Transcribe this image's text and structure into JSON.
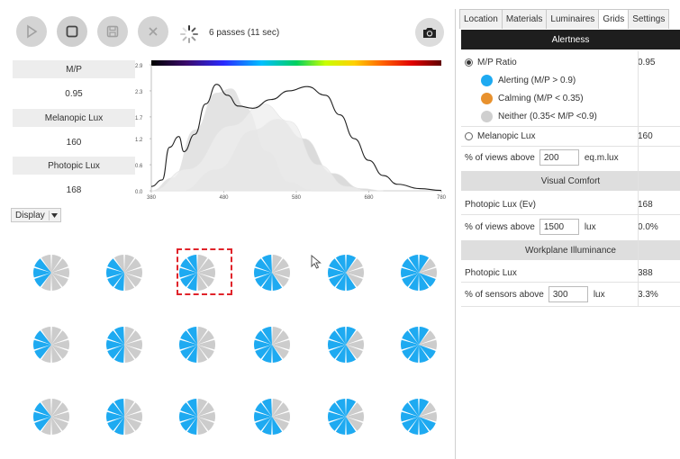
{
  "toolbar": {
    "buttons": [
      {
        "name": "play-button",
        "icon": "play-icon",
        "enabled": false
      },
      {
        "name": "stop-button",
        "icon": "stop-icon",
        "enabled": true
      },
      {
        "name": "save-button",
        "icon": "save-icon",
        "enabled": false
      },
      {
        "name": "cancel-button",
        "icon": "close-icon",
        "enabled": false
      }
    ],
    "status": "6 passes (11 sec)",
    "camera_icon": "camera-icon"
  },
  "metrics": [
    {
      "label": "M/P",
      "value": "0.95"
    },
    {
      "label": "Melanopic Lux",
      "value": "160"
    },
    {
      "label": "Photopic Lux",
      "value": "168"
    }
  ],
  "chart_data": {
    "type": "line",
    "xlim": [
      380,
      780
    ],
    "ylim": [
      0,
      2.9
    ],
    "x_ticks": [
      "380",
      "480",
      "580",
      "680",
      "780"
    ],
    "y_ticks": [
      "2.9",
      "2.3",
      "1.7",
      "1.2",
      "0.6",
      "0.0"
    ],
    "series": [
      {
        "values": [
          [
            380,
            0.1
          ],
          [
            395,
            0.25
          ],
          [
            405,
            1.0
          ],
          [
            418,
            1.25
          ],
          [
            425,
            0.9
          ],
          [
            440,
            1.3
          ],
          [
            455,
            2.0
          ],
          [
            470,
            2.45
          ],
          [
            485,
            2.2
          ],
          [
            500,
            1.95
          ],
          [
            520,
            1.9
          ],
          [
            545,
            2.1
          ],
          [
            570,
            2.3
          ],
          [
            595,
            2.4
          ],
          [
            620,
            2.2
          ],
          [
            640,
            1.75
          ],
          [
            660,
            1.2
          ],
          [
            680,
            0.7
          ],
          [
            700,
            0.35
          ],
          [
            720,
            0.15
          ],
          [
            750,
            0.05
          ],
          [
            780,
            0.01
          ]
        ]
      },
      {
        "values": [
          [
            380,
            0
          ],
          [
            410,
            0.3
          ],
          [
            440,
            1.4
          ],
          [
            470,
            2.25
          ],
          [
            490,
            2.35
          ],
          [
            510,
            1.9
          ],
          [
            540,
            0.9
          ],
          [
            570,
            0.2
          ],
          [
            600,
            0.02
          ]
        ]
      },
      {
        "values": [
          [
            420,
            0
          ],
          [
            470,
            0.5
          ],
          [
            520,
            1.4
          ],
          [
            555,
            1.65
          ],
          [
            590,
            1.2
          ],
          [
            630,
            0.4
          ],
          [
            670,
            0.05
          ],
          [
            700,
            0
          ]
        ]
      },
      {
        "values": [
          [
            380,
            0
          ],
          [
            430,
            0.5
          ],
          [
            490,
            1.5
          ],
          [
            535,
            2.0
          ],
          [
            570,
            1.6
          ],
          [
            610,
            0.6
          ],
          [
            650,
            0.1
          ],
          [
            680,
            0
          ]
        ]
      }
    ]
  },
  "display": {
    "label": "Display"
  },
  "tabs": [
    "Location",
    "Materials",
    "Luminaires",
    "Grids",
    "Settings"
  ],
  "active_tab": "Grids",
  "panel": {
    "alertness": {
      "title": "Alertness",
      "mp_ratio_label": "M/P Ratio",
      "mp_ratio_value": "0.95",
      "legend": [
        {
          "label": "Alerting (M/P > 0.9)",
          "color": "#1eaaf1"
        },
        {
          "label": "Calming (M/P < 0.35)",
          "color": "#e8912d"
        },
        {
          "label": "Neither (0.35< M/P <0.9)",
          "color": "#cfcfcf"
        }
      ],
      "melanopic_label": "Melanopic Lux",
      "melanopic_value": "160",
      "views_above_label": "% of views above",
      "views_above_input": "200",
      "views_above_unit": "eq.m.lux"
    },
    "visual_comfort": {
      "title": "Visual Comfort",
      "photopic_label": "Photopic Lux (Ev)",
      "photopic_value": "168",
      "views_above_label": "% of views above",
      "views_above_input": "1500",
      "views_above_unit": "lux",
      "views_above_value": "0.0%"
    },
    "workplane": {
      "title": "Workplane Illuminance",
      "photopic_label": "Photopic Lux",
      "photopic_value": "388",
      "sensors_label": "% of sensors above",
      "sensors_input": "300",
      "sensors_unit": "lux",
      "sensors_value": "3.3%"
    }
  },
  "glyph_grid": {
    "rows": 3,
    "cols": 6,
    "selected": {
      "row": 0,
      "col": 2
    },
    "blue_fraction": [
      [
        0.33,
        0.4,
        0.45,
        0.55,
        0.68,
        0.75
      ],
      [
        0.33,
        0.45,
        0.45,
        0.6,
        0.7,
        0.75
      ],
      [
        0.33,
        0.45,
        0.45,
        0.6,
        0.7,
        0.75
      ]
    ],
    "blue": "#1eaaf1",
    "gray": "#cccccc"
  }
}
